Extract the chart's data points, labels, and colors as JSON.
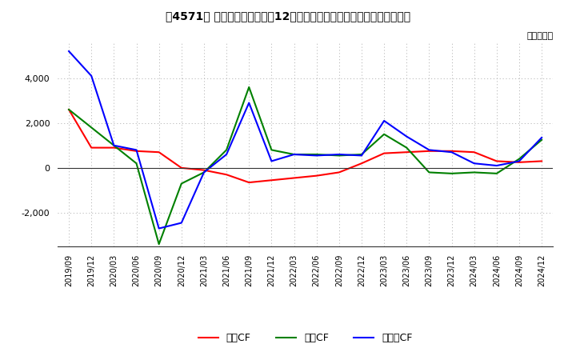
{
  "title": "、4571】 キャッシュフローの12か月移動合計の対前年同期増減額の推移",
  "ylabel": "（百万円）",
  "x_labels": [
    "2019/09",
    "2019/12",
    "2020/03",
    "2020/06",
    "2020/09",
    "2020/12",
    "2021/03",
    "2021/06",
    "2021/09",
    "2021/12",
    "2022/03",
    "2022/06",
    "2022/09",
    "2022/12",
    "2023/03",
    "2023/06",
    "2023/09",
    "2023/12",
    "2024/03",
    "2024/06",
    "2024/09",
    "2024/12"
  ],
  "operating_cf": [
    2600,
    900,
    900,
    750,
    700,
    0,
    -100,
    -300,
    -650,
    -550,
    -450,
    -350,
    -200,
    200,
    650,
    700,
    750,
    750,
    700,
    300,
    250,
    300
  ],
  "investing_cf": [
    2600,
    1800,
    1000,
    200,
    -3400,
    -700,
    -200,
    800,
    3600,
    800,
    600,
    600,
    550,
    600,
    1500,
    900,
    -200,
    -250,
    -200,
    -250,
    400,
    1250
  ],
  "free_cf": [
    5200,
    4100,
    1000,
    800,
    -2700,
    -2450,
    -200,
    600,
    2900,
    300,
    600,
    550,
    600,
    550,
    2100,
    1400,
    800,
    700,
    200,
    100,
    300,
    1350
  ],
  "operating_color": "#ff0000",
  "investing_color": "#008000",
  "free_color": "#0000ff",
  "background_color": "#ffffff",
  "grid_color": "#aaaaaa",
  "ylim": [
    -3500,
    5600
  ],
  "yticks": [
    -2000,
    0,
    2000,
    4000
  ],
  "legend_labels": [
    "営業CF",
    "投資CF",
    "フリーCF"
  ]
}
